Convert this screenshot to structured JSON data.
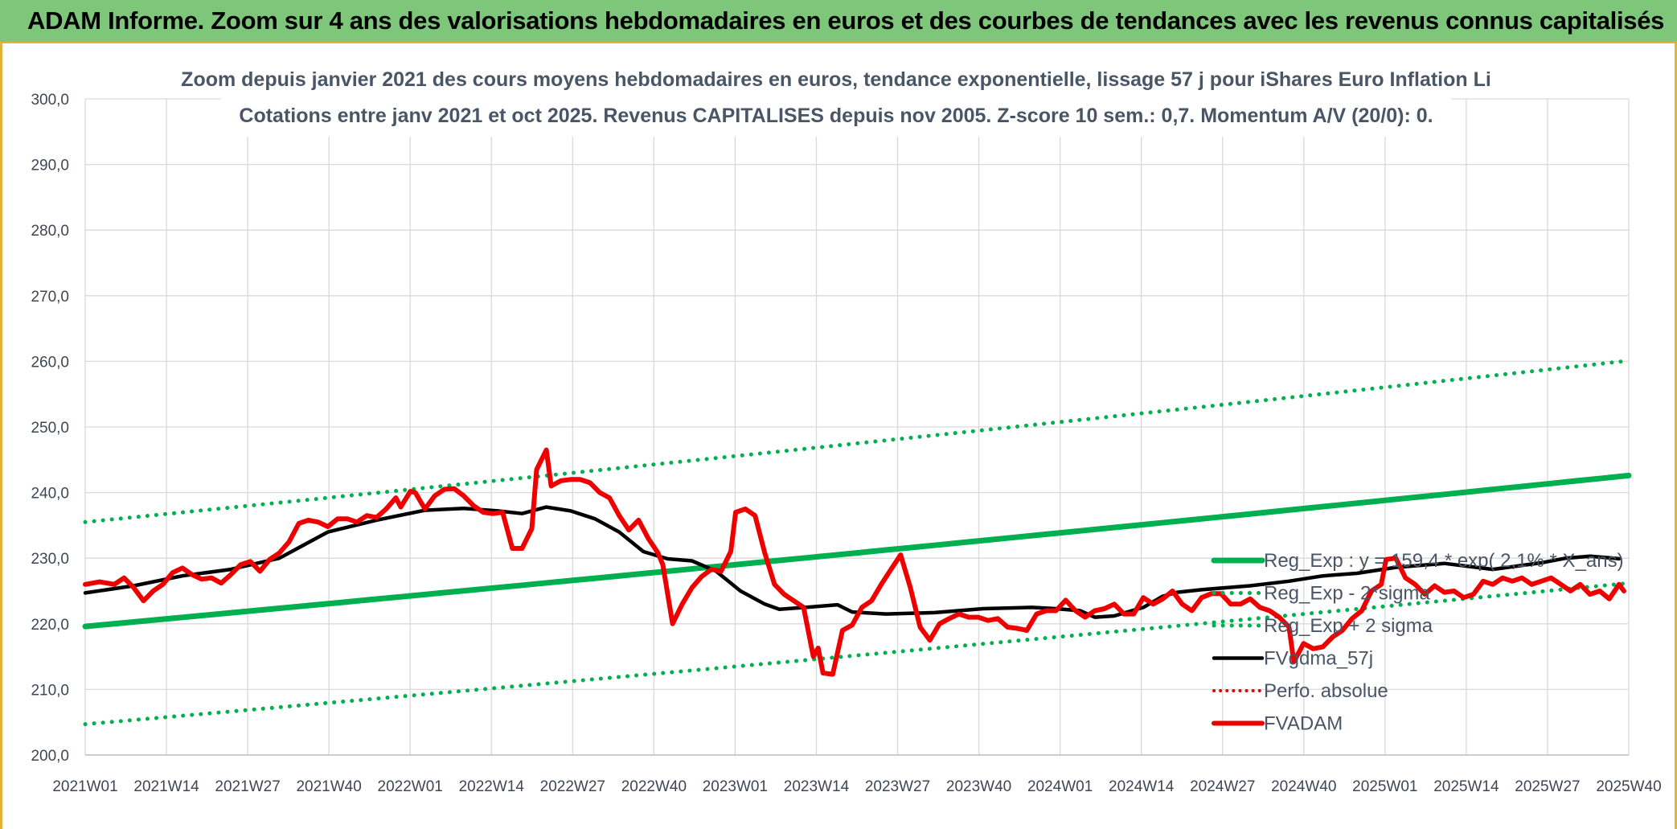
{
  "banner": {
    "title": "ADAM Informe. Zoom sur 4 ans des valorisations hebdomadaires en euros et des courbes de tendances avec les revenus connus capitalisés"
  },
  "colors": {
    "banner_bg": "#7dc67a",
    "green": "#00b050",
    "red": "#ee0000",
    "black": "#000000",
    "accent": "#e2b23a"
  },
  "chart_data": {
    "type": "line",
    "title": "Zoom depuis janvier 2021 des cours moyens hebdomadaires en euros, tendance exponentielle, lissage 57 j pour iShares Euro Inflation Li",
    "subtitle": "Cotations entre janv 2021 et oct 2025. Revenus CAPITALISES depuis nov 2005. Z-score 10 sem.: 0,7. Momentum A/V (20/0): 0.",
    "ylim": [
      200,
      300
    ],
    "yticks": [
      "300,0",
      "290,0",
      "280,0",
      "270,0",
      "260,0",
      "250,0",
      "240,0",
      "230,0",
      "220,0",
      "210,0",
      "200,0"
    ],
    "xticks": [
      "2021W01",
      "2021W14",
      "2021W27",
      "2021W40",
      "2022W01",
      "2022W14",
      "2022W27",
      "2022W40",
      "2023W01",
      "2023W14",
      "2023W27",
      "2023W40",
      "2024W01",
      "2024W14",
      "2024W27",
      "2024W40",
      "2025W01",
      "2025W14",
      "2025W27",
      "2025W40"
    ],
    "grid": true,
    "legend_position": "right",
    "n_weeks": 248,
    "series": [
      {
        "name": "Reg_Exp : y = 159,4 * exp( 2,1% * X_ans)",
        "style": "solid-green",
        "start": 219.6,
        "end": 242.6
      },
      {
        "name": "Reg_Exp - 2*sigma",
        "style": "dotted-green",
        "start": 204.7,
        "end": 226.2
      },
      {
        "name": "Reg_Exp + 2 sigma",
        "style": "dotted-green",
        "start": 235.5,
        "end": 260.1
      },
      {
        "name": "FVgdma_57j",
        "style": "solid-black",
        "points": [
          [
            0,
            224.7
          ],
          [
            10,
            225.8
          ],
          [
            20,
            227.3
          ],
          [
            30,
            228.3
          ],
          [
            40,
            230.0
          ],
          [
            45,
            232.0
          ],
          [
            50,
            234.0
          ],
          [
            60,
            235.8
          ],
          [
            70,
            237.3
          ],
          [
            78,
            237.6
          ],
          [
            85,
            237.2
          ],
          [
            90,
            236.8
          ],
          [
            95,
            237.8
          ],
          [
            100,
            237.2
          ],
          [
            105,
            236.0
          ],
          [
            110,
            234.0
          ],
          [
            115,
            231.0
          ],
          [
            120,
            229.9
          ],
          [
            125,
            229.6
          ],
          [
            130,
            228.0
          ],
          [
            135,
            225.0
          ],
          [
            140,
            223.0
          ],
          [
            143,
            222.2
          ],
          [
            150,
            222.6
          ],
          [
            155,
            222.9
          ],
          [
            158,
            221.8
          ],
          [
            165,
            221.5
          ],
          [
            175,
            221.7
          ],
          [
            185,
            222.3
          ],
          [
            195,
            222.5
          ],
          [
            200,
            222.3
          ],
          [
            205,
            222.0
          ],
          [
            208,
            221.0
          ],
          [
            212,
            221.2
          ],
          [
            218,
            222.5
          ],
          [
            222,
            224.2
          ],
          [
            225,
            224.8
          ],
          [
            230,
            225.2
          ],
          [
            240,
            225.8
          ],
          [
            248,
            226.5
          ],
          [
            255,
            227.3
          ],
          [
            262,
            227.7
          ],
          [
            270,
            228.6
          ],
          [
            280,
            229.2
          ],
          [
            290,
            228.3
          ],
          [
            300,
            229.3
          ],
          [
            305,
            230.0
          ],
          [
            310,
            230.3
          ],
          [
            315,
            230.0
          ],
          [
            316,
            229.9
          ]
        ]
      },
      {
        "name": "Perfo. absolue",
        "style": "dotted-red",
        "points": []
      },
      {
        "name": "FVADAM",
        "style": "solid-red",
        "points": [
          [
            0,
            226.0
          ],
          [
            3,
            226.4
          ],
          [
            6,
            226.0
          ],
          [
            8,
            227.0
          ],
          [
            10,
            225.5
          ],
          [
            12,
            223.5
          ],
          [
            14,
            225.0
          ],
          [
            16,
            226.0
          ],
          [
            18,
            227.8
          ],
          [
            20,
            228.5
          ],
          [
            22,
            227.5
          ],
          [
            24,
            226.8
          ],
          [
            26,
            227.0
          ],
          [
            28,
            226.2
          ],
          [
            30,
            227.5
          ],
          [
            32,
            229.0
          ],
          [
            34,
            229.5
          ],
          [
            36,
            228.0
          ],
          [
            38,
            229.8
          ],
          [
            40,
            230.8
          ],
          [
            42,
            232.5
          ],
          [
            44,
            235.3
          ],
          [
            46,
            235.8
          ],
          [
            48,
            235.5
          ],
          [
            50,
            234.8
          ],
          [
            52,
            236.0
          ],
          [
            54,
            236.0
          ],
          [
            56,
            235.5
          ],
          [
            58,
            236.5
          ],
          [
            60,
            236.2
          ],
          [
            62,
            237.5
          ],
          [
            64,
            239.2
          ],
          [
            65,
            237.8
          ],
          [
            67,
            240.2
          ],
          [
            68,
            240.0
          ],
          [
            70,
            237.5
          ],
          [
            72,
            239.5
          ],
          [
            74,
            240.5
          ],
          [
            76,
            240.6
          ],
          [
            78,
            239.5
          ],
          [
            80,
            238.0
          ],
          [
            82,
            237.0
          ],
          [
            84,
            236.8
          ],
          [
            86,
            237.0
          ],
          [
            88,
            231.5
          ],
          [
            90,
            231.5
          ],
          [
            92,
            234.5
          ],
          [
            93,
            243.5
          ],
          [
            95,
            246.5
          ],
          [
            96,
            241.0
          ],
          [
            98,
            241.8
          ],
          [
            100,
            242.0
          ],
          [
            102,
            242.0
          ],
          [
            104,
            241.5
          ],
          [
            106,
            240.0
          ],
          [
            108,
            239.2
          ],
          [
            110,
            236.5
          ],
          [
            112,
            234.3
          ],
          [
            114,
            235.8
          ],
          [
            116,
            233.0
          ],
          [
            118,
            230.8
          ],
          [
            119,
            229.0
          ],
          [
            121,
            220.0
          ],
          [
            123,
            223.0
          ],
          [
            125,
            225.5
          ],
          [
            127,
            227.2
          ],
          [
            129,
            228.3
          ],
          [
            131,
            228.0
          ],
          [
            133,
            231.0
          ],
          [
            134,
            237.0
          ],
          [
            136,
            237.5
          ],
          [
            138,
            236.5
          ],
          [
            140,
            230.8
          ],
          [
            142,
            226.0
          ],
          [
            144,
            224.5
          ],
          [
            146,
            223.5
          ],
          [
            148,
            222.5
          ],
          [
            150,
            215.0
          ],
          [
            151,
            216.3
          ],
          [
            152,
            212.5
          ],
          [
            154,
            212.3
          ],
          [
            156,
            219.0
          ],
          [
            158,
            219.8
          ],
          [
            160,
            222.5
          ],
          [
            162,
            223.5
          ],
          [
            164,
            226.0
          ],
          [
            166,
            228.3
          ],
          [
            168,
            230.5
          ],
          [
            170,
            225.5
          ],
          [
            172,
            219.5
          ],
          [
            174,
            217.5
          ],
          [
            176,
            220.0
          ],
          [
            178,
            220.8
          ],
          [
            180,
            221.5
          ],
          [
            182,
            221.0
          ],
          [
            184,
            221.0
          ],
          [
            186,
            220.5
          ],
          [
            188,
            220.8
          ],
          [
            190,
            219.5
          ],
          [
            192,
            219.3
          ],
          [
            194,
            219.0
          ],
          [
            196,
            221.5
          ],
          [
            198,
            222.0
          ],
          [
            200,
            222.0
          ],
          [
            202,
            223.6
          ],
          [
            204,
            222.0
          ],
          [
            206,
            221.0
          ],
          [
            208,
            222.0
          ],
          [
            210,
            222.3
          ],
          [
            212,
            223.0
          ],
          [
            214,
            221.5
          ],
          [
            216,
            221.5
          ],
          [
            218,
            224.0
          ],
          [
            220,
            223.0
          ],
          [
            222,
            223.8
          ],
          [
            224,
            225.0
          ],
          [
            226,
            223.0
          ],
          [
            228,
            222.0
          ],
          [
            230,
            224.0
          ],
          [
            232,
            224.6
          ],
          [
            234,
            224.6
          ],
          [
            236,
            223.0
          ],
          [
            238,
            223.0
          ],
          [
            240,
            223.8
          ],
          [
            242,
            222.5
          ],
          [
            244,
            222.0
          ],
          [
            246,
            221.0
          ],
          [
            248,
            219.5
          ],
          [
            249,
            214.2
          ],
          [
            251,
            217.0
          ],
          [
            253,
            216.2
          ],
          [
            255,
            216.5
          ],
          [
            257,
            218.0
          ],
          [
            259,
            219.0
          ],
          [
            261,
            220.8
          ],
          [
            263,
            222.0
          ],
          [
            265,
            225.0
          ],
          [
            267,
            226.0
          ],
          [
            268,
            229.8
          ],
          [
            270,
            230.0
          ],
          [
            272,
            227.0
          ],
          [
            274,
            226.0
          ],
          [
            276,
            224.5
          ],
          [
            278,
            225.8
          ],
          [
            280,
            224.8
          ],
          [
            282,
            225.0
          ],
          [
            284,
            224.0
          ],
          [
            286,
            224.5
          ],
          [
            288,
            226.5
          ],
          [
            290,
            226.0
          ],
          [
            292,
            227.0
          ],
          [
            294,
            226.5
          ],
          [
            296,
            227.0
          ],
          [
            298,
            226.0
          ],
          [
            300,
            226.5
          ],
          [
            302,
            227.0
          ],
          [
            304,
            226.0
          ],
          [
            306,
            225.0
          ],
          [
            308,
            226.0
          ],
          [
            310,
            224.5
          ],
          [
            312,
            225.0
          ],
          [
            314,
            223.8
          ],
          [
            316,
            226.0
          ],
          [
            317,
            225.0
          ]
        ]
      }
    ]
  }
}
